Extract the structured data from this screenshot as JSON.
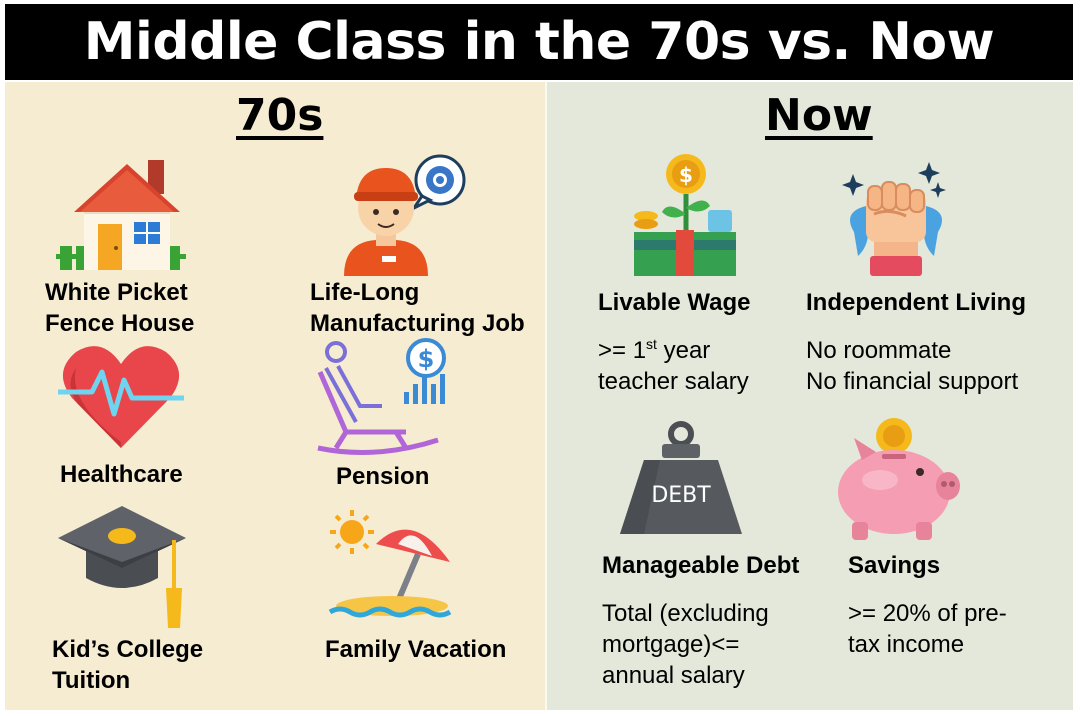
{
  "title": "Middle Class in the 70s vs. Now",
  "left": {
    "heading": "70s",
    "items": [
      {
        "label_line1": "White Picket",
        "label_line2": "Fence House",
        "icon": "house-icon"
      },
      {
        "label_line1": "Life-Long",
        "label_line2": "Manufacturing Job",
        "icon": "worker-icon"
      },
      {
        "label": "Healthcare",
        "icon": "heart-icon"
      },
      {
        "label": "Pension",
        "icon": "rocking-chair-icon"
      },
      {
        "label_line1": "Kid’s College",
        "label_line2": "Tuition",
        "icon": "graduation-cap-icon"
      },
      {
        "label": "Family Vacation",
        "icon": "beach-umbrella-icon"
      }
    ]
  },
  "right": {
    "heading": "Now",
    "items": [
      {
        "label": "Livable Wage",
        "desc_prefix": ">= 1",
        "desc_sup": "st",
        "desc_suffix": " year",
        "desc_line2": "teacher salary",
        "icon": "money-plant-icon"
      },
      {
        "label": "Independent Living",
        "desc_line1": "No roommate",
        "desc_line2": "No financial support",
        "icon": "raised-fist-icon"
      },
      {
        "label": "Manageable Debt",
        "desc_line1": "Total (excluding",
        "desc_line2": "mortgage)<=",
        "desc_line3": "annual salary",
        "icon": "debt-weight-icon",
        "icon_text": "DEBT"
      },
      {
        "label": "Savings",
        "desc_line1": ">= 20% of pre-",
        "desc_line2": "tax income",
        "icon": "piggy-bank-icon"
      }
    ]
  }
}
